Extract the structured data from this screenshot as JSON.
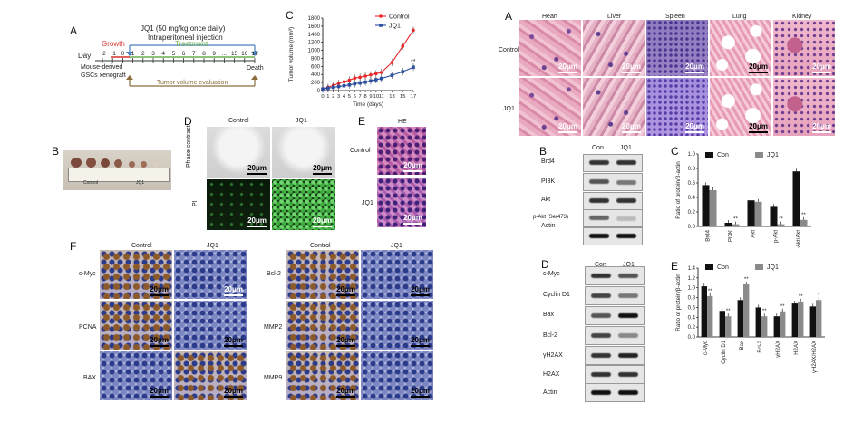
{
  "panel_letters": {
    "A_left": "A",
    "B_left": "B",
    "C_left": "C",
    "D_left": "D",
    "E_left": "E",
    "F_left": "F",
    "A_right": "A",
    "B_right": "B",
    "C_right": "C",
    "D_right": "D",
    "E_right": "E"
  },
  "timeline": {
    "title_line1": "JQ1 (50 mg/kg once daily)",
    "title_line2": "Intraperitoneal injection",
    "growth": "Growth",
    "treatment": "Treatment",
    "day_label": "Day",
    "ticks": [
      "−2",
      "−1",
      "0",
      "1",
      "2",
      "3",
      "4",
      "5",
      "6",
      "7",
      "8",
      "9",
      "...",
      "15",
      "16",
      "17"
    ],
    "left_note_1": "Mouse-derived",
    "left_note_2": "GSCs xenograft",
    "death": "Death",
    "evaluation": "Tumor volume evaluation"
  },
  "tumor_photo": {
    "control_label": "Control",
    "jq1_label": "JQ1"
  },
  "colors": {
    "control": "#e8262b",
    "jq1": "#2b4fa0",
    "bar_dark": "#111111",
    "bar_gray": "#8a8a8a"
  },
  "chart_data": [
    {
      "type": "line",
      "panel": "C (left)",
      "xlabel": "Time (days)",
      "ylabel": "Tumor volume (mm³)",
      "x": [
        0,
        1,
        2,
        3,
        4,
        5,
        6,
        7,
        8,
        9,
        10,
        11,
        13,
        15,
        17
      ],
      "x_ticks": [
        "0",
        "1",
        "2",
        "3",
        "4",
        "5",
        "6",
        "7",
        "8",
        "9",
        "10",
        "11",
        "13",
        "15",
        "17"
      ],
      "y_ticks": [
        "0",
        "200",
        "400",
        "600",
        "800",
        "1000",
        "1200",
        "1400",
        "1600",
        "1800"
      ],
      "ylim": [
        0,
        1800
      ],
      "series": [
        {
          "name": "Control",
          "values": [
            40,
            80,
            130,
            180,
            220,
            260,
            310,
            330,
            360,
            390,
            420,
            450,
            700,
            1100,
            1500
          ]
        },
        {
          "name": "JQ1",
          "values": [
            40,
            60,
            80,
            100,
            120,
            140,
            170,
            190,
            210,
            240,
            270,
            300,
            380,
            470,
            580
          ]
        }
      ],
      "annotation": "**",
      "legend": "top-right"
    },
    {
      "type": "bar",
      "panel": "C (right)",
      "ylabel": "Ratio of protein/β-actin",
      "categories": [
        "Brd4",
        "PI3K",
        "Akt",
        "p-Akt",
        "p-Akt/Akt"
      ],
      "series": [
        {
          "name": "Con",
          "values": [
            0.57,
            0.05,
            0.36,
            0.27,
            0.76
          ]
        },
        {
          "name": "JQ1",
          "values": [
            0.5,
            0.03,
            0.34,
            0.03,
            0.09
          ]
        }
      ],
      "y_ticks": [
        "0.0",
        "0.2",
        "0.4",
        "0.6",
        "0.8",
        "1.0"
      ],
      "ylim": [
        0,
        1.0
      ],
      "annotations": [
        "",
        "**",
        "",
        "**",
        "**"
      ],
      "legend": "top"
    },
    {
      "type": "bar",
      "panel": "E (right)",
      "ylabel": "Ratio of protein/β-actin",
      "categories": [
        "c-Myc",
        "Cyclin D1",
        "Bax",
        "Bcl-2",
        "γH2AX",
        "H2AX",
        "γH2AX/H2AX"
      ],
      "series": [
        {
          "name": "Con",
          "values": [
            1.03,
            0.53,
            0.75,
            0.6,
            0.42,
            0.68,
            0.62
          ]
        },
        {
          "name": "JQ1",
          "values": [
            0.83,
            0.42,
            1.07,
            0.42,
            0.52,
            0.72,
            0.75
          ]
        }
      ],
      "y_ticks": [
        "0.0",
        "0.2",
        "0.4",
        "0.6",
        "0.8",
        "1.0",
        "1.2",
        "1.4"
      ],
      "ylim": [
        0,
        1.4
      ],
      "annotations": [
        "**",
        "**",
        "**",
        "**",
        "**",
        "**",
        "*"
      ],
      "legend": "top"
    }
  ],
  "d_left": {
    "control": "Control",
    "jq1": "JQ1",
    "row1": "Phase contrast",
    "row2": "PI",
    "scale": "20μm"
  },
  "e_left": {
    "title": "HE",
    "row1": "Control",
    "row2": "JQ1",
    "scale": "20μm"
  },
  "f_left": {
    "col1": "Control",
    "col2": "JQ1",
    "col3": "Control",
    "col4": "JQ1",
    "rows_left": [
      "c-Myc",
      "PCNA",
      "BAX"
    ],
    "rows_right": [
      "Bcl-2",
      "MMP2",
      "MMP9"
    ],
    "scale": "20μm"
  },
  "a_right": {
    "organs": [
      "Heart",
      "Liver",
      "Spleen",
      "Lung",
      "Kidney"
    ],
    "row1": "Control",
    "row2": "JQ1",
    "scale": "20μm"
  },
  "b_right": {
    "con": "Con",
    "jq1": "JQ1",
    "proteins": [
      "Brd4",
      "PI3K",
      "Akt",
      "p-Akt (Ser473)",
      "Actin"
    ]
  },
  "d_right": {
    "con": "Con",
    "jq1": "JQ1",
    "proteins": [
      "c-Myc",
      "Cyclin D1",
      "Bax",
      "Bcl-2",
      "γH2AX",
      "H2AX",
      "Actin"
    ]
  }
}
